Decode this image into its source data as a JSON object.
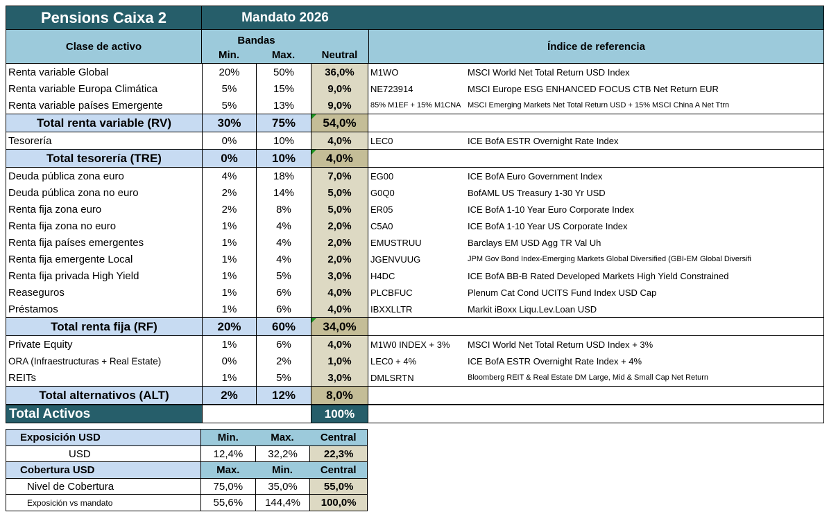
{
  "app": {
    "title": "Pensions Caixa 2",
    "mandate": "Mandato 2026"
  },
  "colors": {
    "dark_teal": "#265E6A",
    "header_blue": "#9CCADB",
    "subtotal_blue": "#C7DBF2",
    "neutral_tan": "#DDD9C3",
    "neutral_tan_dark": "#C4BD97",
    "comment_green": "#1E9623"
  },
  "main_table": {
    "headers": {
      "asset_class": "Clase de activo",
      "bands": "Bandas",
      "min": "Min.",
      "max": "Max.",
      "neutral": "Neutral",
      "reference_index": "Índice de referencia"
    },
    "rows": [
      {
        "type": "item",
        "label": "Renta variable Global",
        "min": "20%",
        "max": "50%",
        "neutral": "36,0%",
        "ticker": "M1WO",
        "index": "MSCI World Net Total Return USD Index"
      },
      {
        "type": "item",
        "label": "Renta variable Europa Climática",
        "min": "5%",
        "max": "15%",
        "neutral": "9,0%",
        "ticker": "NE723914",
        "index": "MSCI Europe ESG ENHANCED FOCUS CTB Net Return EUR"
      },
      {
        "type": "item",
        "label": "Renta variable países Emergente",
        "min": "5%",
        "max": "13%",
        "neutral": "9,0%",
        "ticker": "85% M1EF + 15% M1CNA",
        "index": "MSCI Emerging Markets Net Total Return USD + 15% MSCI China A  Net Ttrn",
        "ticker_small": true,
        "index_small": true
      },
      {
        "type": "subtotal",
        "label": "Total renta variable (RV)",
        "min": "30%",
        "max": "75%",
        "neutral": "54,0%",
        "comment": true
      },
      {
        "type": "item",
        "label": "Tesorería",
        "min": "0%",
        "max": "10%",
        "neutral": "4,0%",
        "ticker": "LEC0",
        "index": "ICE BofA ESTR Overnight Rate Index"
      },
      {
        "type": "subtotal",
        "label": "Total tesorería (TRE)",
        "min": "0%",
        "max": "10%",
        "neutral": "4,0%",
        "comment": true
      },
      {
        "type": "item",
        "label": "Deuda pública zona euro",
        "min": "4%",
        "max": "18%",
        "neutral": "7,0%",
        "ticker": "EG00",
        "index": "ICE BofA Euro Government Index"
      },
      {
        "type": "item",
        "label": "Deuda pública zona no euro",
        "min": "2%",
        "max": "14%",
        "neutral": "5,0%",
        "ticker": "G0Q0",
        "index": "BofAML US Treasury 1-30 Yr USD"
      },
      {
        "type": "item",
        "label": "Renta fija zona euro",
        "min": "2%",
        "max": "8%",
        "neutral": "5,0%",
        "ticker": "ER05",
        "index": "ICE BofA 1-10 Year Euro Corporate Index"
      },
      {
        "type": "item",
        "label": "Renta fija zona no euro",
        "min": "1%",
        "max": "4%",
        "neutral": "2,0%",
        "ticker": "C5A0",
        "index": "ICE BofA 1-10 Year US Corporate Index"
      },
      {
        "type": "item",
        "label": "Renta fija países emergentes",
        "min": "1%",
        "max": "4%",
        "neutral": "2,0%",
        "ticker": "EMUSTRUU",
        "index": "Barclays EM USD Agg TR Val Uh"
      },
      {
        "type": "item",
        "label": "Renta fija emergente Local",
        "min": "1%",
        "max": "4%",
        "neutral": "2,0%",
        "ticker": "JGENVUUG",
        "index": "JPM Gov Bond Index-Emerging Markets Global Diversified (GBI-EM Global Diversifi",
        "index_small": true
      },
      {
        "type": "item",
        "label": "Renta fija privada High Yield",
        "min": "1%",
        "max": "5%",
        "neutral": "3,0%",
        "ticker": "H4DC",
        "index": "ICE BofA BB-B Rated Developed Markets High Yield Constrained"
      },
      {
        "type": "item",
        "label": "Reaseguros",
        "min": "1%",
        "max": "6%",
        "neutral": "4,0%",
        "ticker": "PLCBFUC",
        "index": "Plenum Cat Cond UCITS Fund Index USD Cap"
      },
      {
        "type": "item",
        "label": "Préstamos",
        "min": "1%",
        "max": "6%",
        "neutral": "4,0%",
        "ticker": "IBXXLLTR",
        "index": "Markit iBoxx Liqu.Lev.Loan USD"
      },
      {
        "type": "subtotal",
        "label": "Total renta fija (RF)",
        "min": "20%",
        "max": "60%",
        "neutral": "34,0%",
        "comment": true
      },
      {
        "type": "item",
        "label": "Private Equity",
        "min": "1%",
        "max": "6%",
        "neutral": "4,0%",
        "ticker": "M1W0 INDEX + 3%",
        "index": "MSCI World Net Total Return USD Index + 3%"
      },
      {
        "type": "item",
        "label": "ORA (Infraestructuras + Real Estate)",
        "min": "0%",
        "max": "2%",
        "neutral": "1,0%",
        "ticker": "LEC0 + 4%",
        "index": "ICE BofA ESTR Overnight Rate Index + 4%",
        "label_small": true
      },
      {
        "type": "item",
        "label": "REITs",
        "min": "1%",
        "max": "5%",
        "neutral": "3,0%",
        "ticker": "DMLSRTN",
        "index": "Bloomberg REIT & Real Estate DM Large, Mid & Small Cap Net Return",
        "index_small": true
      },
      {
        "type": "subtotal",
        "label": "Total alternativos (ALT)",
        "min": "2%",
        "max": "12%",
        "neutral": "8,0%"
      },
      {
        "type": "grand",
        "label": "Total Activos",
        "min": "",
        "max": "",
        "neutral": "100%"
      }
    ]
  },
  "usd_tables": {
    "exposure": {
      "title": "Exposición USD",
      "columns": [
        "Min.",
        "Max.",
        "Central"
      ],
      "rows": [
        {
          "label": "USD",
          "values": [
            "12,4%",
            "32,2%",
            "22,3%"
          ]
        }
      ]
    },
    "coverage": {
      "title": "Cobertura USD",
      "columns": [
        "Max.",
        "Min.",
        "Central"
      ],
      "rows": [
        {
          "label": "Nivel de Cobertura",
          "values": [
            "75,0%",
            "35,0%",
            "55,0%"
          ]
        },
        {
          "label": "Exposición vs mandato",
          "values": [
            "55,6%",
            "144,4%",
            "100,0%"
          ],
          "small": true
        }
      ]
    }
  }
}
